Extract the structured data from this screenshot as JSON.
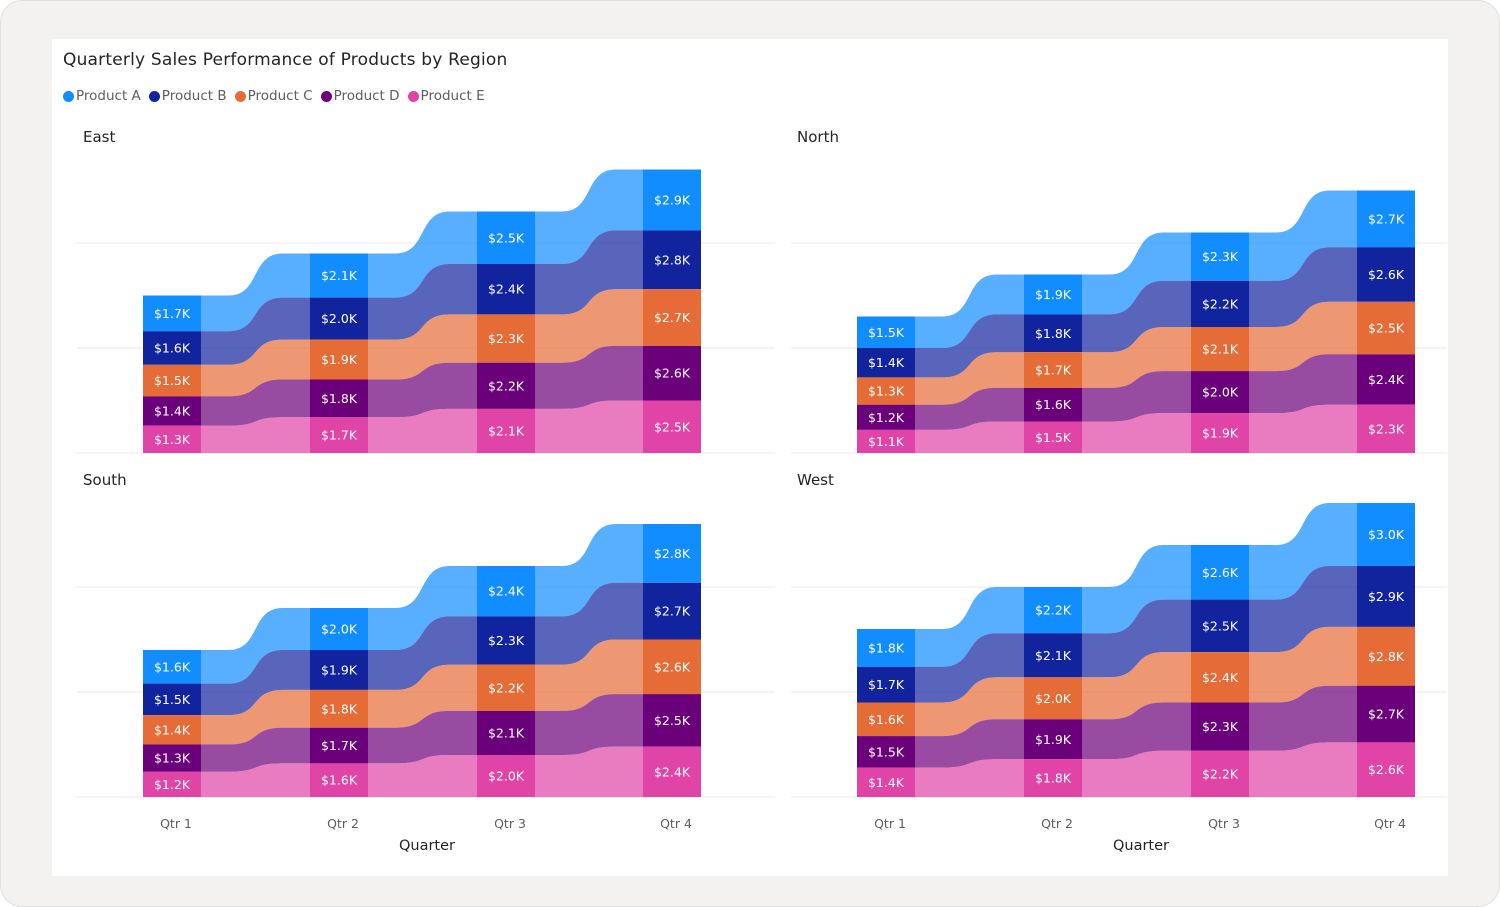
{
  "chart_data": {
    "type": "ribbon",
    "title": "Quarterly Sales Performance of Products by Region",
    "xlabel": "Quarter",
    "categories": [
      "Qtr 1",
      "Qtr 2",
      "Qtr 3",
      "Qtr 4"
    ],
    "legend_position": "top-left",
    "grid": true,
    "ylim": [
      0,
      15000
    ],
    "series_names": [
      "Product A",
      "Product B",
      "Product C",
      "Product D",
      "Product E"
    ],
    "colors": {
      "Product A": "#118DFF",
      "Product B": "#12239E",
      "Product C": "#E66C37",
      "Product D": "#6B007B",
      "Product E": "#E044A7"
    },
    "panels": [
      {
        "region": "East",
        "series": [
          {
            "name": "Product A",
            "values": [
              1700,
              2100,
              2500,
              2900
            ],
            "labels": [
              "$1.7K",
              "$2.1K",
              "$2.5K",
              "$2.9K"
            ]
          },
          {
            "name": "Product B",
            "values": [
              1600,
              2000,
              2400,
              2800
            ],
            "labels": [
              "$1.6K",
              "$2.0K",
              "$2.4K",
              "$2.8K"
            ]
          },
          {
            "name": "Product C",
            "values": [
              1500,
              1900,
              2300,
              2700
            ],
            "labels": [
              "$1.5K",
              "$1.9K",
              "$2.3K",
              "$2.7K"
            ]
          },
          {
            "name": "Product D",
            "values": [
              1400,
              1800,
              2200,
              2600
            ],
            "labels": [
              "$1.4K",
              "$1.8K",
              "$2.2K",
              "$2.6K"
            ]
          },
          {
            "name": "Product E",
            "values": [
              1300,
              1700,
              2100,
              2500
            ],
            "labels": [
              "$1.3K",
              "$1.7K",
              "$2.1K",
              "$2.5K"
            ]
          }
        ]
      },
      {
        "region": "North",
        "series": [
          {
            "name": "Product A",
            "values": [
              1500,
              1900,
              2300,
              2700
            ],
            "labels": [
              "$1.5K",
              "$1.9K",
              "$2.3K",
              "$2.7K"
            ]
          },
          {
            "name": "Product B",
            "values": [
              1400,
              1800,
              2200,
              2600
            ],
            "labels": [
              "$1.4K",
              "$1.8K",
              "$2.2K",
              "$2.6K"
            ]
          },
          {
            "name": "Product C",
            "values": [
              1300,
              1700,
              2100,
              2500
            ],
            "labels": [
              "$1.3K",
              "$1.7K",
              "$2.1K",
              "$2.5K"
            ]
          },
          {
            "name": "Product D",
            "values": [
              1200,
              1600,
              2000,
              2400
            ],
            "labels": [
              "$1.2K",
              "$1.6K",
              "$2.0K",
              "$2.4K"
            ]
          },
          {
            "name": "Product E",
            "values": [
              1100,
              1500,
              1900,
              2300
            ],
            "labels": [
              "$1.1K",
              "$1.5K",
              "$1.9K",
              "$2.3K"
            ]
          }
        ]
      },
      {
        "region": "South",
        "series": [
          {
            "name": "Product A",
            "values": [
              1600,
              2000,
              2400,
              2800
            ],
            "labels": [
              "$1.6K",
              "$2.0K",
              "$2.4K",
              "$2.8K"
            ]
          },
          {
            "name": "Product B",
            "values": [
              1500,
              1900,
              2300,
              2700
            ],
            "labels": [
              "$1.5K",
              "$1.9K",
              "$2.3K",
              "$2.7K"
            ]
          },
          {
            "name": "Product C",
            "values": [
              1400,
              1800,
              2200,
              2600
            ],
            "labels": [
              "$1.4K",
              "$1.8K",
              "$2.2K",
              "$2.6K"
            ]
          },
          {
            "name": "Product D",
            "values": [
              1300,
              1700,
              2100,
              2500
            ],
            "labels": [
              "$1.3K",
              "$1.7K",
              "$2.1K",
              "$2.5K"
            ]
          },
          {
            "name": "Product E",
            "values": [
              1200,
              1600,
              2000,
              2400
            ],
            "labels": [
              "$1.2K",
              "$1.6K",
              "$2.0K",
              "$2.4K"
            ]
          }
        ]
      },
      {
        "region": "West",
        "series": [
          {
            "name": "Product A",
            "values": [
              1800,
              2200,
              2600,
              3000
            ],
            "labels": [
              "$1.8K",
              "$2.2K",
              "$2.6K",
              "$3.0K"
            ]
          },
          {
            "name": "Product B",
            "values": [
              1700,
              2100,
              2500,
              2900
            ],
            "labels": [
              "$1.7K",
              "$2.1K",
              "$2.5K",
              "$2.9K"
            ]
          },
          {
            "name": "Product C",
            "values": [
              1600,
              2000,
              2400,
              2800
            ],
            "labels": [
              "$1.6K",
              "$2.0K",
              "$2.4K",
              "$2.8K"
            ]
          },
          {
            "name": "Product D",
            "values": [
              1500,
              1900,
              2300,
              2700
            ],
            "labels": [
              "$1.5K",
              "$1.9K",
              "$2.3K",
              "$2.7K"
            ]
          },
          {
            "name": "Product E",
            "values": [
              1400,
              1800,
              2200,
              2600
            ],
            "labels": [
              "$1.4K",
              "$1.8K",
              "$2.2K",
              "$2.6K"
            ]
          }
        ]
      }
    ]
  }
}
